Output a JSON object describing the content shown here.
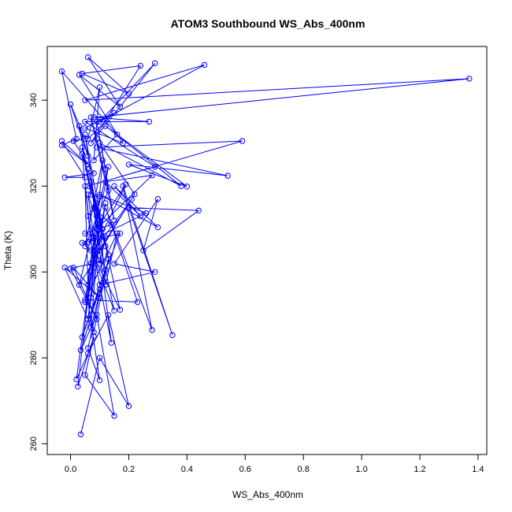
{
  "chart_data": {
    "type": "line",
    "title": "ATOM3 Southbound WS_Abs_400nm",
    "xlabel": "WS_Abs_400nm",
    "ylabel": "Theta (K)",
    "xlim": [
      -0.08,
      1.43
    ],
    "ylim": [
      257.5,
      352.5
    ],
    "xticks": [
      0.0,
      0.2,
      0.4,
      0.6,
      0.8,
      1.0,
      1.2,
      1.4
    ],
    "xtick_labels": [
      "0.0",
      "0.2",
      "0.4",
      "0.6",
      "0.8",
      "1.0",
      "1.2",
      "1.4"
    ],
    "yticks": [
      260,
      280,
      300,
      320,
      340
    ],
    "ytick_labels": [
      "260",
      "280",
      "300",
      "320",
      "340"
    ],
    "grid": false,
    "colors": {
      "series": "#0000ff",
      "frame": "#000000"
    },
    "series": [
      {
        "marker": "open-circle",
        "points": [
          [
            0.035,
            262.2
          ],
          [
            0.1,
            280.0
          ],
          [
            0.2,
            268.8
          ],
          [
            0.13,
            290.0
          ],
          [
            0.06,
            281.0
          ],
          [
            0.02,
            275.0
          ],
          [
            0.07,
            300.0
          ],
          [
            0.025,
            273.3
          ],
          [
            0.08,
            285.0
          ],
          [
            0.05,
            276.0
          ],
          [
            0.15,
            266.5
          ],
          [
            0.09,
            290.0
          ],
          [
            0.035,
            281.8
          ],
          [
            0.1,
            296.0
          ],
          [
            0.04,
            284.8
          ],
          [
            0.12,
            300.5
          ],
          [
            0.06,
            282.3
          ],
          [
            0.1,
            274.8
          ],
          [
            0.06,
            293.0
          ],
          [
            0.08,
            304.0
          ],
          [
            0.14,
            283.5
          ],
          [
            0.09,
            310.0
          ],
          [
            0.15,
            291.0
          ],
          [
            0.07,
            305.0
          ],
          [
            0.17,
            291.2
          ],
          [
            0.1,
            312.0
          ],
          [
            0.12,
            297.0
          ],
          [
            0.16,
            309.0
          ],
          [
            0.05,
            293.5
          ],
          [
            0.23,
            293.0
          ],
          [
            0.12,
            315.0
          ],
          [
            0.28,
            286.5
          ],
          [
            0.18,
            320.0
          ],
          [
            0.35,
            285.3
          ],
          [
            0.2,
            315.0
          ],
          [
            0.44,
            314.3
          ],
          [
            0.25,
            305.0
          ],
          [
            0.3,
            317.0
          ],
          [
            0.15,
            301.9
          ],
          [
            0.29,
            300.0
          ],
          [
            0.1,
            297.0
          ],
          [
            0.17,
            309.0
          ],
          [
            0.06,
            307.0
          ],
          [
            0.26,
            313.7
          ],
          [
            0.1,
            318.0
          ],
          [
            0.3,
            310.4
          ],
          [
            0.15,
            320.0
          ],
          [
            0.24,
            313.0
          ],
          [
            0.12,
            321.0
          ],
          [
            0.28,
            322.5
          ],
          [
            0.09,
            310.0
          ],
          [
            0.19,
            320.4
          ],
          [
            0.08,
            305.0
          ],
          [
            0.21,
            316.9
          ],
          [
            0.07,
            302.0
          ],
          [
            0.13,
            324.5
          ],
          [
            0.03,
            297.0
          ],
          [
            0.22,
            318.1
          ],
          [
            0.1,
            330.0
          ],
          [
            0.38,
            320.0
          ],
          [
            0.12,
            334.0
          ],
          [
            0.4,
            319.9
          ],
          [
            0.2,
            325.0
          ],
          [
            0.54,
            322.4
          ],
          [
            0.09,
            329.0
          ],
          [
            0.59,
            330.5
          ],
          [
            0.06,
            320.0
          ],
          [
            0.29,
            324.5
          ],
          [
            0.05,
            335.0
          ],
          [
            0.27,
            335.0
          ],
          [
            0.08,
            336.0
          ],
          [
            1.37,
            345.0
          ],
          [
            0.05,
            340.0
          ],
          [
            0.46,
            348.2
          ],
          [
            0.1,
            335.0
          ],
          [
            0.29,
            348.6
          ],
          [
            0.07,
            330.0
          ],
          [
            0.24,
            348.0
          ],
          [
            0.04,
            346.2
          ],
          [
            0.2,
            341.5
          ],
          [
            0.06,
            350.0
          ],
          [
            0.17,
            338.5
          ],
          [
            0.03,
            345.9
          ],
          [
            0.18,
            330.0
          ],
          [
            0.05,
            333.5
          ],
          [
            0.15,
            337.0
          ],
          [
            0.06,
            331.0
          ],
          [
            0.1,
            343.0
          ],
          [
            0.08,
            326.0
          ],
          [
            0.16,
            332.0
          ],
          [
            -0.03,
            346.7
          ],
          [
            0.02,
            331.0
          ],
          [
            -0.03,
            329.5
          ],
          [
            0.06,
            325.0
          ],
          [
            -0.03,
            330.5
          ],
          [
            0.05,
            322.0
          ],
          [
            -0.02,
            322.0
          ],
          [
            0.08,
            323.0
          ],
          [
            0.01,
            330.5
          ],
          [
            0.05,
            331.0
          ],
          [
            0.0,
            339.0
          ],
          [
            0.06,
            327.0
          ],
          [
            0.03,
            334.0
          ],
          [
            0.07,
            318.0
          ],
          [
            0.04,
            329.0
          ],
          [
            0.09,
            313.0
          ],
          [
            0.05,
            332.0
          ],
          [
            0.11,
            310.0
          ],
          [
            0.06,
            324.0
          ],
          [
            0.13,
            304.0
          ],
          [
            0.04,
            327.5
          ],
          [
            0.08,
            301.0
          ],
          [
            0.05,
            320.0
          ],
          [
            0.06,
            297.0
          ],
          [
            0.1,
            317.5
          ],
          [
            0.05,
            293.0
          ],
          [
            0.12,
            316.0
          ],
          [
            0.06,
            289.0
          ],
          [
            0.1,
            312.0
          ],
          [
            0.07,
            287.0
          ],
          [
            0.13,
            303.0
          ],
          [
            0.08,
            286.0
          ],
          [
            -0.02,
            301.0
          ],
          [
            0.1,
            294.0
          ],
          [
            0.01,
            301.0
          ],
          [
            0.09,
            289.0
          ],
          [
            0.0,
            300.8
          ],
          [
            0.11,
            302.5
          ],
          [
            0.04,
            306.8
          ],
          [
            0.08,
            308.0
          ],
          [
            0.06,
            318.0
          ],
          [
            0.12,
            306.0
          ],
          [
            0.07,
            321.0
          ],
          [
            0.1,
            305.0
          ],
          [
            0.08,
            315.0
          ],
          [
            0.14,
            311.0
          ],
          [
            0.05,
            309.0
          ],
          [
            0.12,
            308.0
          ],
          [
            0.1,
            302.0
          ],
          [
            0.06,
            313.0
          ],
          [
            0.09,
            316.0
          ],
          [
            0.07,
            294.0
          ],
          [
            0.11,
            326.0
          ],
          [
            0.05,
            306.0
          ],
          [
            0.13,
            319.0
          ],
          [
            0.09,
            331.0
          ],
          [
            0.07,
            336.0
          ],
          [
            0.15,
            312.0
          ],
          [
            0.09,
            335.0
          ],
          [
            0.12,
            324.0
          ]
        ]
      }
    ]
  }
}
